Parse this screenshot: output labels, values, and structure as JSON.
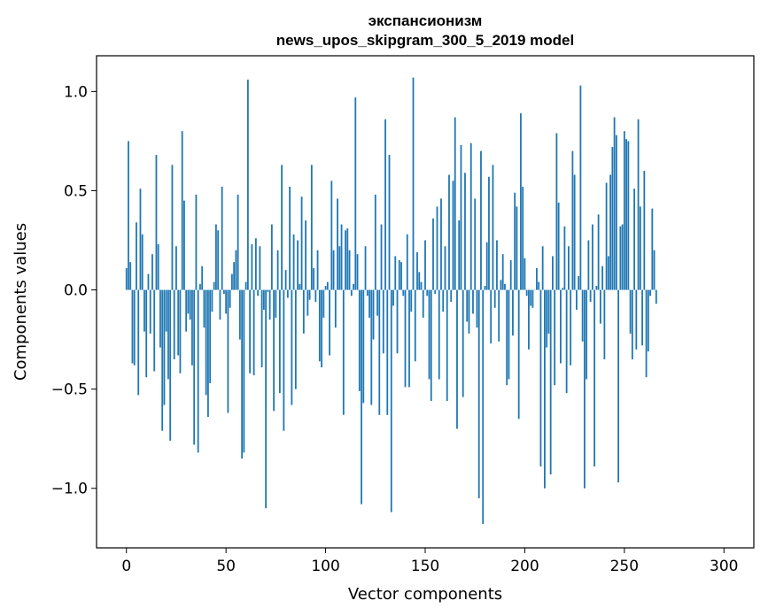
{
  "chart_data": {
    "type": "bar",
    "title": "экспансионизм",
    "subtitle": "news_upos_skipgram_300_5_2019 model",
    "xlabel": "Vector components",
    "ylabel": "Components values",
    "xlim": [
      -15,
      315
    ],
    "ylim": [
      -1.3,
      1.18
    ],
    "xticks": [
      0,
      50,
      100,
      150,
      200,
      250,
      300
    ],
    "xtick_labels": [
      "0",
      "50",
      "100",
      "150",
      "200",
      "250",
      "300"
    ],
    "yticks": [
      -1.0,
      -0.5,
      0.0,
      0.5,
      1.0
    ],
    "ytick_labels": [
      "−1.0",
      "−0.5",
      "0.0",
      "0.5",
      "1.0"
    ],
    "grid": false,
    "bar_color": "#1f77b4",
    "values": [
      0.11,
      0.75,
      0.14,
      -0.37,
      -0.38,
      0.34,
      -0.53,
      0.51,
      0.28,
      -0.21,
      -0.44,
      0.08,
      -0.22,
      0.18,
      -0.41,
      0.68,
      0.23,
      -0.29,
      -0.71,
      -0.58,
      -0.21,
      -0.45,
      -0.76,
      0.63,
      -0.35,
      0.22,
      -0.33,
      -0.42,
      0.8,
      0.45,
      -0.21,
      -0.12,
      -0.15,
      -0.38,
      -0.78,
      0.48,
      -0.82,
      0.03,
      0.12,
      -0.19,
      -0.53,
      -0.64,
      -0.47,
      -0.11,
      0.04,
      0.33,
      0.3,
      -0.15,
      0.52,
      -0.02,
      -0.12,
      -0.62,
      -0.09,
      0.08,
      0.14,
      0.2,
      0.48,
      -0.25,
      -0.85,
      -0.82,
      0.04,
      1.06,
      -0.42,
      0.23,
      -0.43,
      0.26,
      -0.03,
      0.22,
      -0.39,
      -0.1,
      -1.1,
      -0.01,
      -0.15,
      0.33,
      -0.61,
      -0.14,
      0.2,
      -0.52,
      0.63,
      -0.71,
      0.1,
      -0.04,
      0.52,
      -0.58,
      0.28,
      -0.5,
      0.25,
      0.03,
      0.47,
      -0.22,
      0.35,
      -0.13,
      -0.05,
      0.63,
      0.11,
      -0.06,
      0.2,
      -0.36,
      -0.39,
      -0.14,
      0.02,
      0.04,
      -0.33,
      0.55,
      0.2,
      -0.19,
      0.46,
      0.22,
      0.33,
      -0.63,
      0.3,
      0.31,
      0.2,
      -0.03,
      0.03,
      0.97,
      0.18,
      -0.51,
      -1.08,
      -0.57,
      0.22,
      -0.03,
      -0.14,
      -0.58,
      -0.25,
      0.48,
      -0.13,
      -0.63,
      0.33,
      -0.32,
      0.86,
      -0.63,
      0.68,
      -1.12,
      -0.08,
      0.17,
      -0.32,
      0.15,
      0.14,
      -0.03,
      -0.49,
      0.28,
      -0.49,
      -0.11,
      1.07,
      -0.36,
      0.19,
      0.09,
      0.04,
      -0.14,
      0.25,
      -0.03,
      -0.45,
      -0.56,
      0.36,
      -0.02,
      0.42,
      -0.45,
      0.46,
      -0.11,
      0.22,
      -0.56,
      0.58,
      -0.06,
      0.55,
      0.87,
      -0.7,
      0.35,
      0.73,
      -0.54,
      0.59,
      -0.16,
      -0.22,
      0.74,
      -0.12,
      0.46,
      -0.19,
      -1.05,
      0.7,
      -1.18,
      0.02,
      0.24,
      0.57,
      -0.27,
      0.63,
      -0.09,
      0.25,
      -0.26,
      0.05,
      0.18,
      0.03,
      -0.48,
      -0.45,
      0.15,
      -0.23,
      0.49,
      0.42,
      -0.65,
      0.89,
      0.52,
      0.16,
      -0.03,
      -0.3,
      -0.08,
      -0.09,
      0.0,
      0.11,
      0.04,
      -0.89,
      0.22,
      -1.0,
      -0.29,
      -0.22,
      -0.93,
      0.17,
      -0.48,
      0.79,
      0.44,
      -0.37,
      0.01,
      0.32,
      -0.52,
      0.22,
      -0.38,
      0.7,
      0.58,
      -0.1,
      0.07,
      1.03,
      -0.26,
      -1.0,
      -0.45,
      0.25,
      -0.06,
      0.33,
      -0.89,
      0.02,
      0.38,
      -0.17,
      0.12,
      -0.35,
      0.54,
      0.17,
      0.58,
      0.72,
      0.87,
      0.78,
      -0.97,
      0.32,
      0.33,
      0.8,
      0.76,
      0.75,
      -0.22,
      -0.35,
      0.51,
      -0.3,
      0.86,
      0.42,
      -0.28,
      0.6,
      -0.44,
      -0.31,
      -0.03,
      0.41,
      0.2,
      -0.07
    ]
  }
}
